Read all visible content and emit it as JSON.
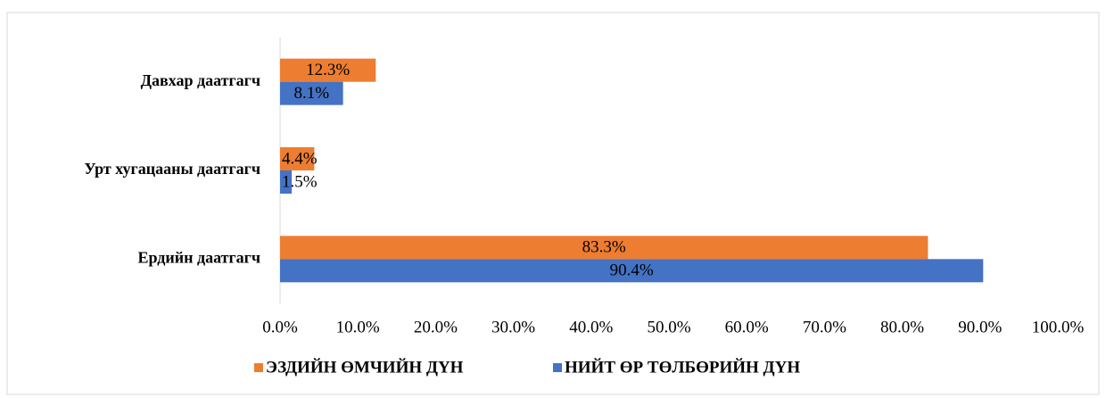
{
  "chart_data": {
    "type": "bar",
    "orientation": "horizontal",
    "categories": [
      "Давхар даатгагч",
      "Урт хугацааны даатгагч",
      "Ердийн даатгагч"
    ],
    "series": [
      {
        "name": "ЭЗДИЙН ӨМЧИЙН ДҮН",
        "color": "#ed7d31",
        "values": [
          12.3,
          4.4,
          83.3
        ],
        "value_labels": [
          "12.3%",
          "4.4%",
          "83.3%"
        ]
      },
      {
        "name": "НИЙТ ӨР ТӨЛБӨРИЙН ДҮН",
        "color": "#4472c4",
        "values": [
          8.1,
          1.5,
          90.4
        ],
        "value_labels": [
          "8.1%",
          "1.5%",
          "90.4%"
        ]
      }
    ],
    "xlim": [
      0,
      100
    ],
    "xticks": [
      {
        "value": 0,
        "label": "0.0%"
      },
      {
        "value": 10,
        "label": "10.0%"
      },
      {
        "value": 20,
        "label": "20.0%"
      },
      {
        "value": 30,
        "label": "30.0%"
      },
      {
        "value": 40,
        "label": "40.0%"
      },
      {
        "value": 50,
        "label": "50.0%"
      },
      {
        "value": 60,
        "label": "60.0%"
      },
      {
        "value": 70,
        "label": "70.0%"
      },
      {
        "value": 80,
        "label": "80.0%"
      },
      {
        "value": 90,
        "label": "90.0%"
      },
      {
        "value": 100,
        "label": "100.0%"
      }
    ],
    "legend": "bottom"
  }
}
